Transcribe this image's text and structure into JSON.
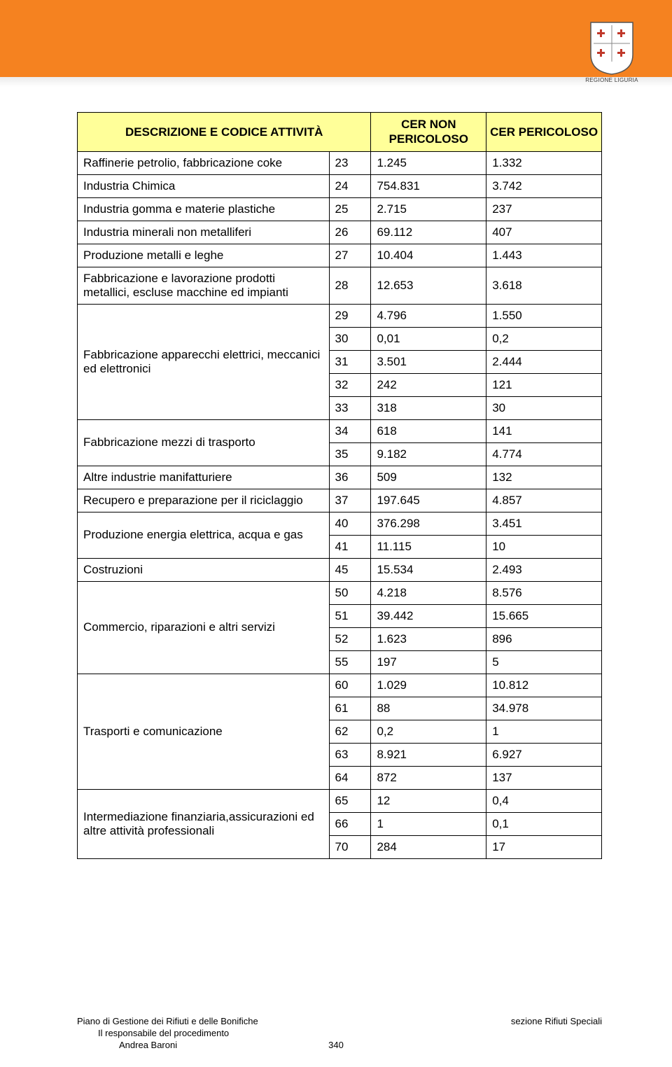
{
  "header": {
    "logo_caption": "REGIONE LIGURIA"
  },
  "table": {
    "headers": {
      "desc": "DESCRIZIONE E CODICE ATTIVITÀ",
      "cer_non": "CER NON PERICOLOSO",
      "cer": "CER PERICOLOSO"
    },
    "header_bg": "#ffff99",
    "border_color": "#000000",
    "rows": [
      {
        "desc": "Raffinerie petrolio, fabbricazione coke",
        "rowspan": 1,
        "cells": [
          [
            "23",
            "1.245",
            "1.332"
          ]
        ]
      },
      {
        "desc": "Industria Chimica",
        "rowspan": 1,
        "cells": [
          [
            "24",
            "754.831",
            "3.742"
          ]
        ]
      },
      {
        "desc": "Industria gomma e materie plastiche",
        "rowspan": 1,
        "cells": [
          [
            "25",
            "2.715",
            "237"
          ]
        ]
      },
      {
        "desc": "Industria minerali non metalliferi",
        "rowspan": 1,
        "cells": [
          [
            "26",
            "69.112",
            "407"
          ]
        ]
      },
      {
        "desc": "Produzione metalli e leghe",
        "rowspan": 1,
        "cells": [
          [
            "27",
            "10.404",
            "1.443"
          ]
        ]
      },
      {
        "desc": "Fabbricazione e lavorazione prodotti metallici, escluse macchine ed impianti",
        "rowspan": 1,
        "cells": [
          [
            "28",
            "12.653",
            "3.618"
          ]
        ]
      },
      {
        "desc": "Fabbricazione apparecchi elettrici, meccanici ed elettronici",
        "rowspan": 5,
        "cells": [
          [
            "29",
            "4.796",
            "1.550"
          ],
          [
            "30",
            "0,01",
            "0,2"
          ],
          [
            "31",
            "3.501",
            "2.444"
          ],
          [
            "32",
            "242",
            "121"
          ],
          [
            "33",
            "318",
            "30"
          ]
        ]
      },
      {
        "desc": "Fabbricazione mezzi di trasporto",
        "rowspan": 2,
        "cells": [
          [
            "34",
            "618",
            "141"
          ],
          [
            "35",
            "9.182",
            "4.774"
          ]
        ]
      },
      {
        "desc": "Altre industrie manifatturiere",
        "rowspan": 1,
        "cells": [
          [
            "36",
            "509",
            "132"
          ]
        ]
      },
      {
        "desc": "Recupero e preparazione per il riciclaggio",
        "rowspan": 1,
        "cells": [
          [
            "37",
            "197.645",
            "4.857"
          ]
        ]
      },
      {
        "desc": "Produzione energia elettrica, acqua e gas",
        "rowspan": 2,
        "cells": [
          [
            "40",
            "376.298",
            "3.451"
          ],
          [
            "41",
            "11.115",
            "10"
          ]
        ]
      },
      {
        "desc": "Costruzioni",
        "rowspan": 1,
        "cells": [
          [
            "45",
            "15.534",
            "2.493"
          ]
        ]
      },
      {
        "desc": "Commercio, riparazioni e altri servizi",
        "rowspan": 4,
        "cells": [
          [
            "50",
            "4.218",
            "8.576"
          ],
          [
            "51",
            "39.442",
            "15.665"
          ],
          [
            "52",
            "1.623",
            "896"
          ],
          [
            "55",
            "197",
            "5"
          ]
        ]
      },
      {
        "desc": "Trasporti e comunicazione",
        "rowspan": 5,
        "cells": [
          [
            "60",
            "1.029",
            "10.812"
          ],
          [
            "61",
            "88",
            "34.978"
          ],
          [
            "62",
            "0,2",
            "1"
          ],
          [
            "63",
            "8.921",
            "6.927"
          ],
          [
            "64",
            "872",
            "137"
          ]
        ]
      },
      {
        "desc": "Intermediazione finanziaria,assicurazioni ed altre attività professionali",
        "rowspan": 3,
        "cells": [
          [
            "65",
            "12",
            "0,4"
          ],
          [
            "66",
            "1",
            "0,1"
          ],
          [
            "70",
            "284",
            "17"
          ]
        ]
      }
    ]
  },
  "footer": {
    "left": "Piano di Gestione dei Rifiuti e delle Bonifiche",
    "right": "sezione Rifiuti Speciali",
    "sub1": "Il responsabile del procedimento",
    "sub2": "Andrea Baroni",
    "page": "340"
  },
  "colors": {
    "header_band": "#f58220",
    "background": "#ffffff"
  }
}
